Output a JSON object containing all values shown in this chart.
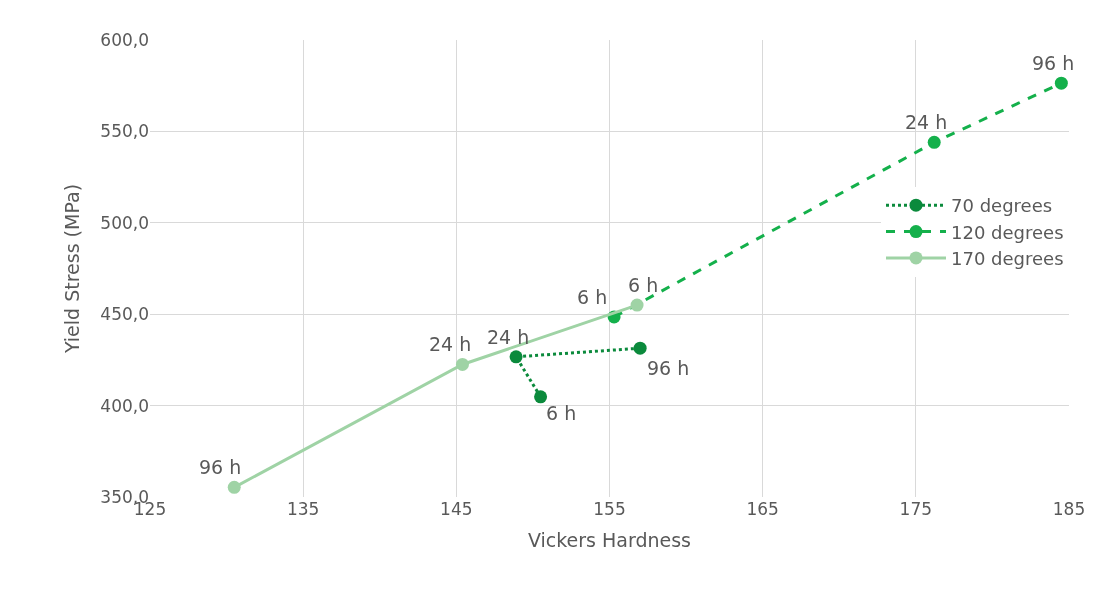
{
  "chart_data": {
    "type": "line",
    "xlabel": "Vickers Hardness",
    "ylabel": "Yield Stress (MPa)",
    "series": [
      {
        "name": "70 degrees",
        "color": "#0b8a3c",
        "line_style": "dotted",
        "x": [
          150.5,
          148.9,
          157.0
        ],
        "values": [
          404.8,
          426.7,
          431.4
        ]
      },
      {
        "name": "120 degrees",
        "color": "#14b04b",
        "line_style": "dashed",
        "x": [
          155.3,
          176.2,
          184.5
        ],
        "values": [
          448.5,
          544.0,
          576.4
        ]
      },
      {
        "name": "170 degrees",
        "color": "#9fd3a5",
        "line_style": "solid",
        "x": [
          156.8,
          145.4,
          130.5
        ],
        "values": [
          455.0,
          422.5,
          355.3
        ]
      }
    ],
    "annotations": [
      {
        "text": "6 h",
        "x": 150.5,
        "y": 404.8
      },
      {
        "text": "24 h",
        "x": 148.9,
        "y": 426.7
      },
      {
        "text": "96 h",
        "x": 157.0,
        "y": 431.4
      },
      {
        "text": "6 h",
        "x": 155.3,
        "y": 448.5
      },
      {
        "text": "24 h",
        "x": 176.2,
        "y": 544.0
      },
      {
        "text": "96 h",
        "x": 184.5,
        "y": 576.4
      },
      {
        "text": "6 h",
        "x": 156.8,
        "y": 455.0
      },
      {
        "text": "24 h",
        "x": 145.4,
        "y": 422.5
      },
      {
        "text": "96 h",
        "x": 130.5,
        "y": 355.3
      }
    ],
    "xlim": [
      125,
      185
    ],
    "xticks": [
      125,
      135,
      145,
      155,
      165,
      175,
      185
    ],
    "ylim": [
      350,
      600
    ],
    "yticks": [
      {
        "value": 350,
        "label": "350,0"
      },
      {
        "value": 400,
        "label": "400,0"
      },
      {
        "value": 450,
        "label": "450,0"
      },
      {
        "value": 500,
        "label": "500,0"
      },
      {
        "value": 550,
        "label": "550,0"
      },
      {
        "value": 600,
        "label": "600,0"
      }
    ],
    "grid": true,
    "legend": "right",
    "marker": "circle"
  }
}
